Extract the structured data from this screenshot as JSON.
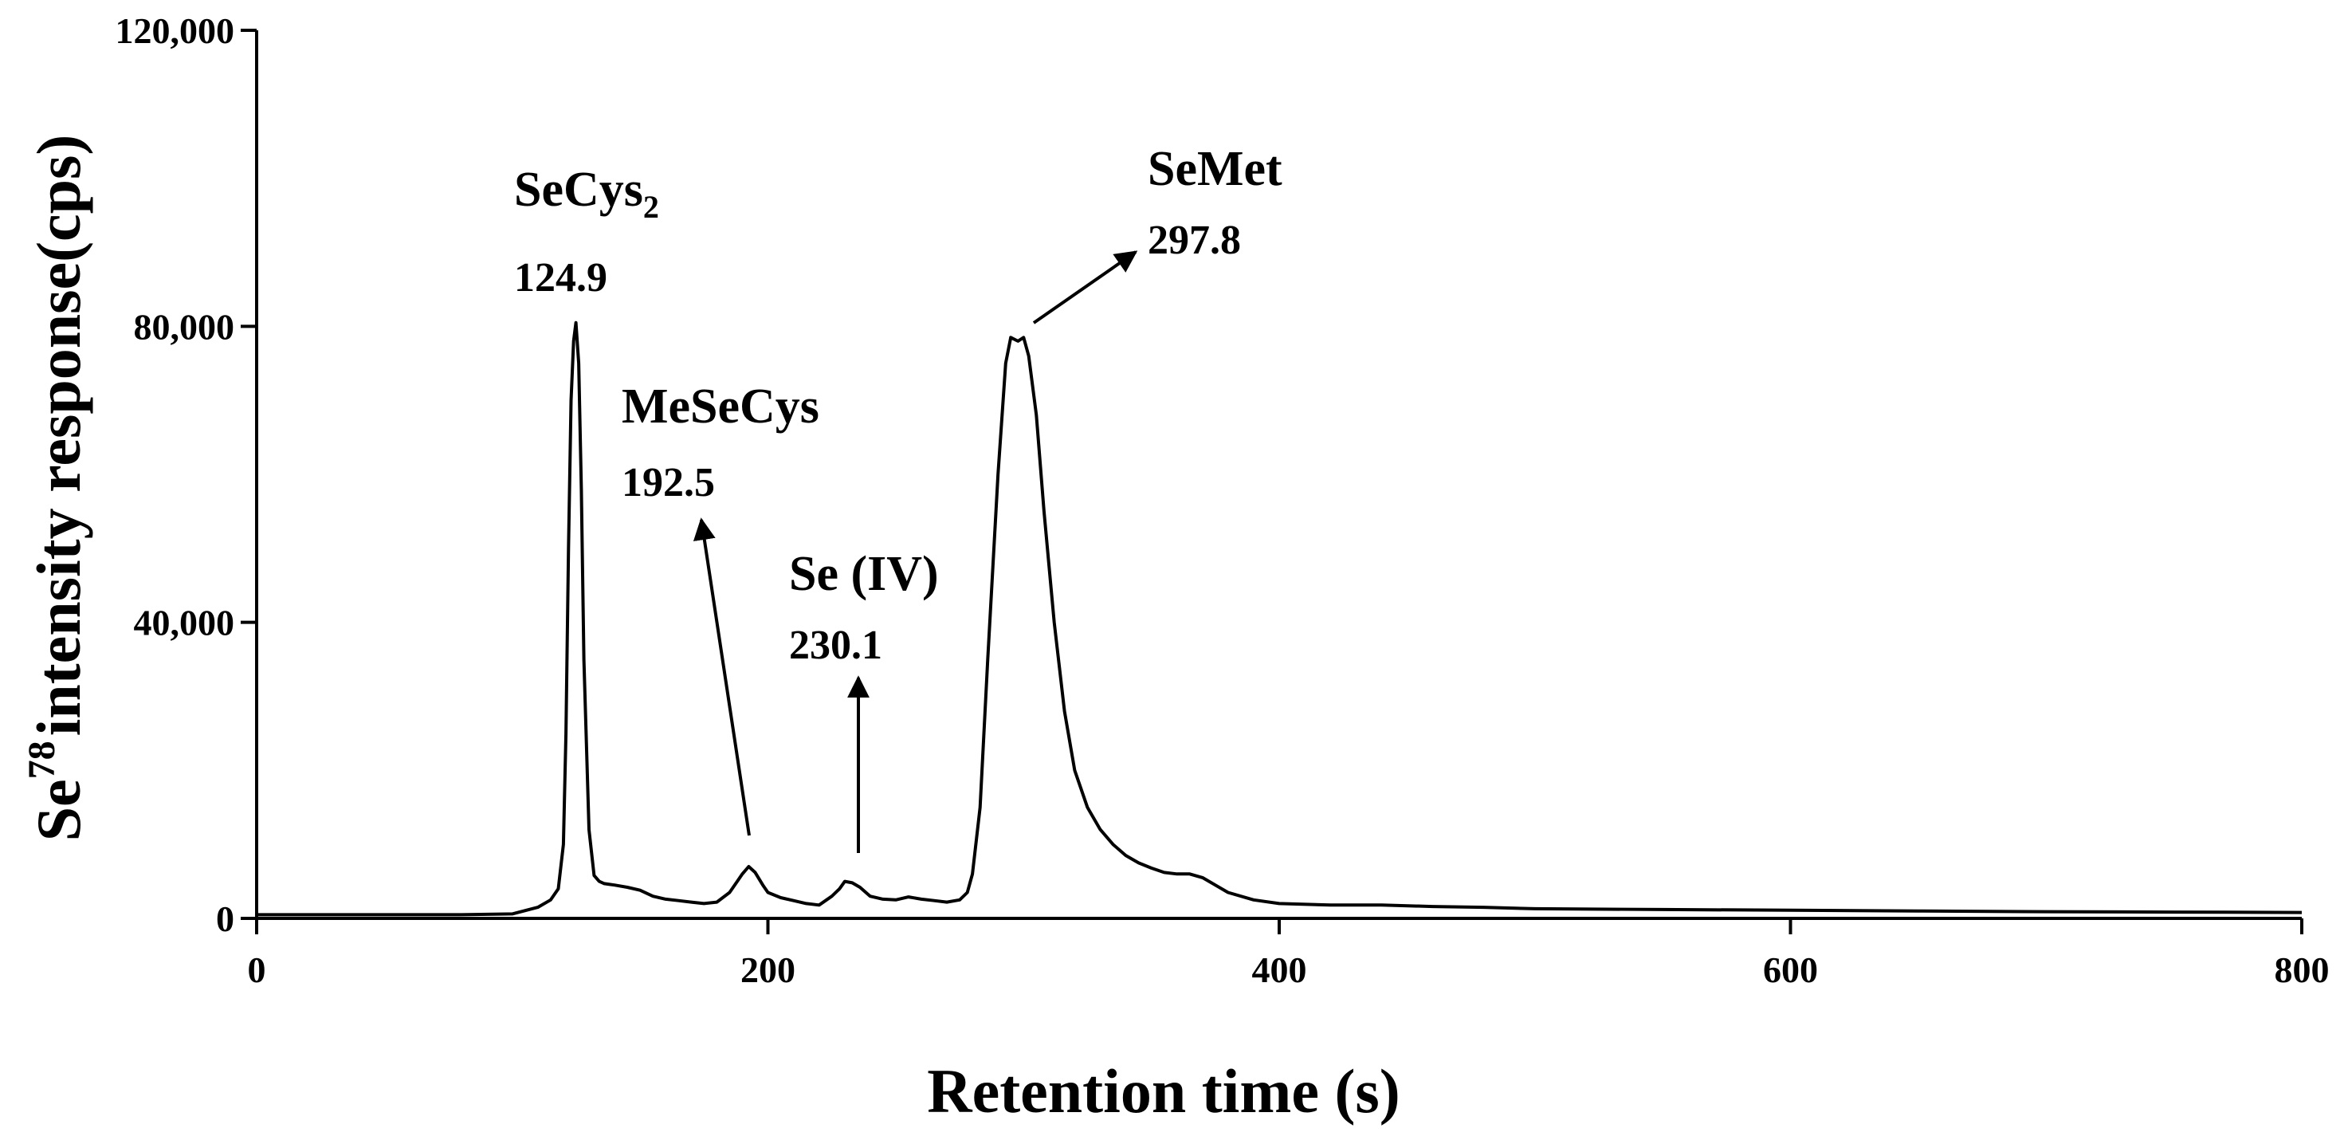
{
  "chart_data": {
    "type": "line",
    "title": "",
    "xlabel": "Retention time (s)",
    "ylabel": {
      "prefix": "Se",
      "superscript": "78",
      "suffix": "intensity response(cps)"
    },
    "xlim": [
      0,
      800
    ],
    "ylim": [
      0,
      120000
    ],
    "x_ticks": [
      0,
      200,
      400,
      600,
      800
    ],
    "x_tick_labels": [
      "0",
      "200",
      "400",
      "600",
      "800"
    ],
    "y_ticks": [
      0,
      40000,
      80000,
      120000
    ],
    "y_tick_labels": [
      "0",
      "40,000",
      "80,000",
      "120,000"
    ],
    "grid": false,
    "legend": "none",
    "line_color": "#000000",
    "series": [
      {
        "x": [
          0,
          20,
          40,
          60,
          80,
          100,
          110,
          115,
          118,
          120,
          121,
          122,
          123,
          124,
          124.9,
          126,
          127,
          128,
          130,
          132,
          134,
          136,
          140,
          145,
          150,
          155,
          160,
          165,
          170,
          175,
          180,
          185,
          188,
          190,
          192.5,
          195,
          198,
          200,
          205,
          210,
          215,
          220,
          225,
          228,
          230.1,
          233,
          236,
          240,
          245,
          250,
          255,
          260,
          265,
          270,
          275,
          278,
          280,
          283,
          286,
          290,
          293,
          295,
          297.8,
          300,
          302,
          305,
          308,
          312,
          316,
          320,
          325,
          330,
          335,
          340,
          345,
          350,
          355,
          360,
          365,
          370,
          375,
          380,
          390,
          400,
          420,
          440,
          460,
          480,
          500,
          550,
          600,
          650,
          700,
          750,
          800
        ],
        "y": [
          500,
          500,
          500,
          500,
          500,
          600,
          1500,
          2500,
          4000,
          10000,
          25000,
          50000,
          70000,
          78000,
          80500,
          75000,
          58000,
          35000,
          12000,
          5800,
          5000,
          4700,
          4500,
          4200,
          3800,
          3000,
          2600,
          2400,
          2200,
          2000,
          2200,
          3500,
          5000,
          6000,
          7000,
          6200,
          4500,
          3500,
          2800,
          2400,
          2000,
          1800,
          3000,
          4000,
          5000,
          4800,
          4200,
          3000,
          2600,
          2500,
          2900,
          2600,
          2400,
          2200,
          2500,
          3500,
          6000,
          15000,
          35000,
          60000,
          75000,
          78500,
          78000,
          78500,
          76000,
          68000,
          55000,
          40000,
          28000,
          20000,
          15000,
          12000,
          10000,
          8500,
          7500,
          6800,
          6200,
          6000,
          6000,
          5500,
          4500,
          3500,
          2500,
          2000,
          1800,
          1800,
          1600,
          1500,
          1300,
          1200,
          1100,
          1000,
          900,
          850,
          800
        ]
      }
    ],
    "annotations": [
      {
        "name": "SeCys",
        "subscript": "2",
        "time": "124.9",
        "x": 124.9
      },
      {
        "name": "MeSeCys",
        "subscript": "",
        "time": "192.5",
        "x": 192.5
      },
      {
        "name": "Se (IV)",
        "subscript": "",
        "time": "230.1",
        "x": 230.1
      },
      {
        "name": "SeMet",
        "subscript": "",
        "time": "297.8",
        "x": 297.8
      }
    ]
  }
}
